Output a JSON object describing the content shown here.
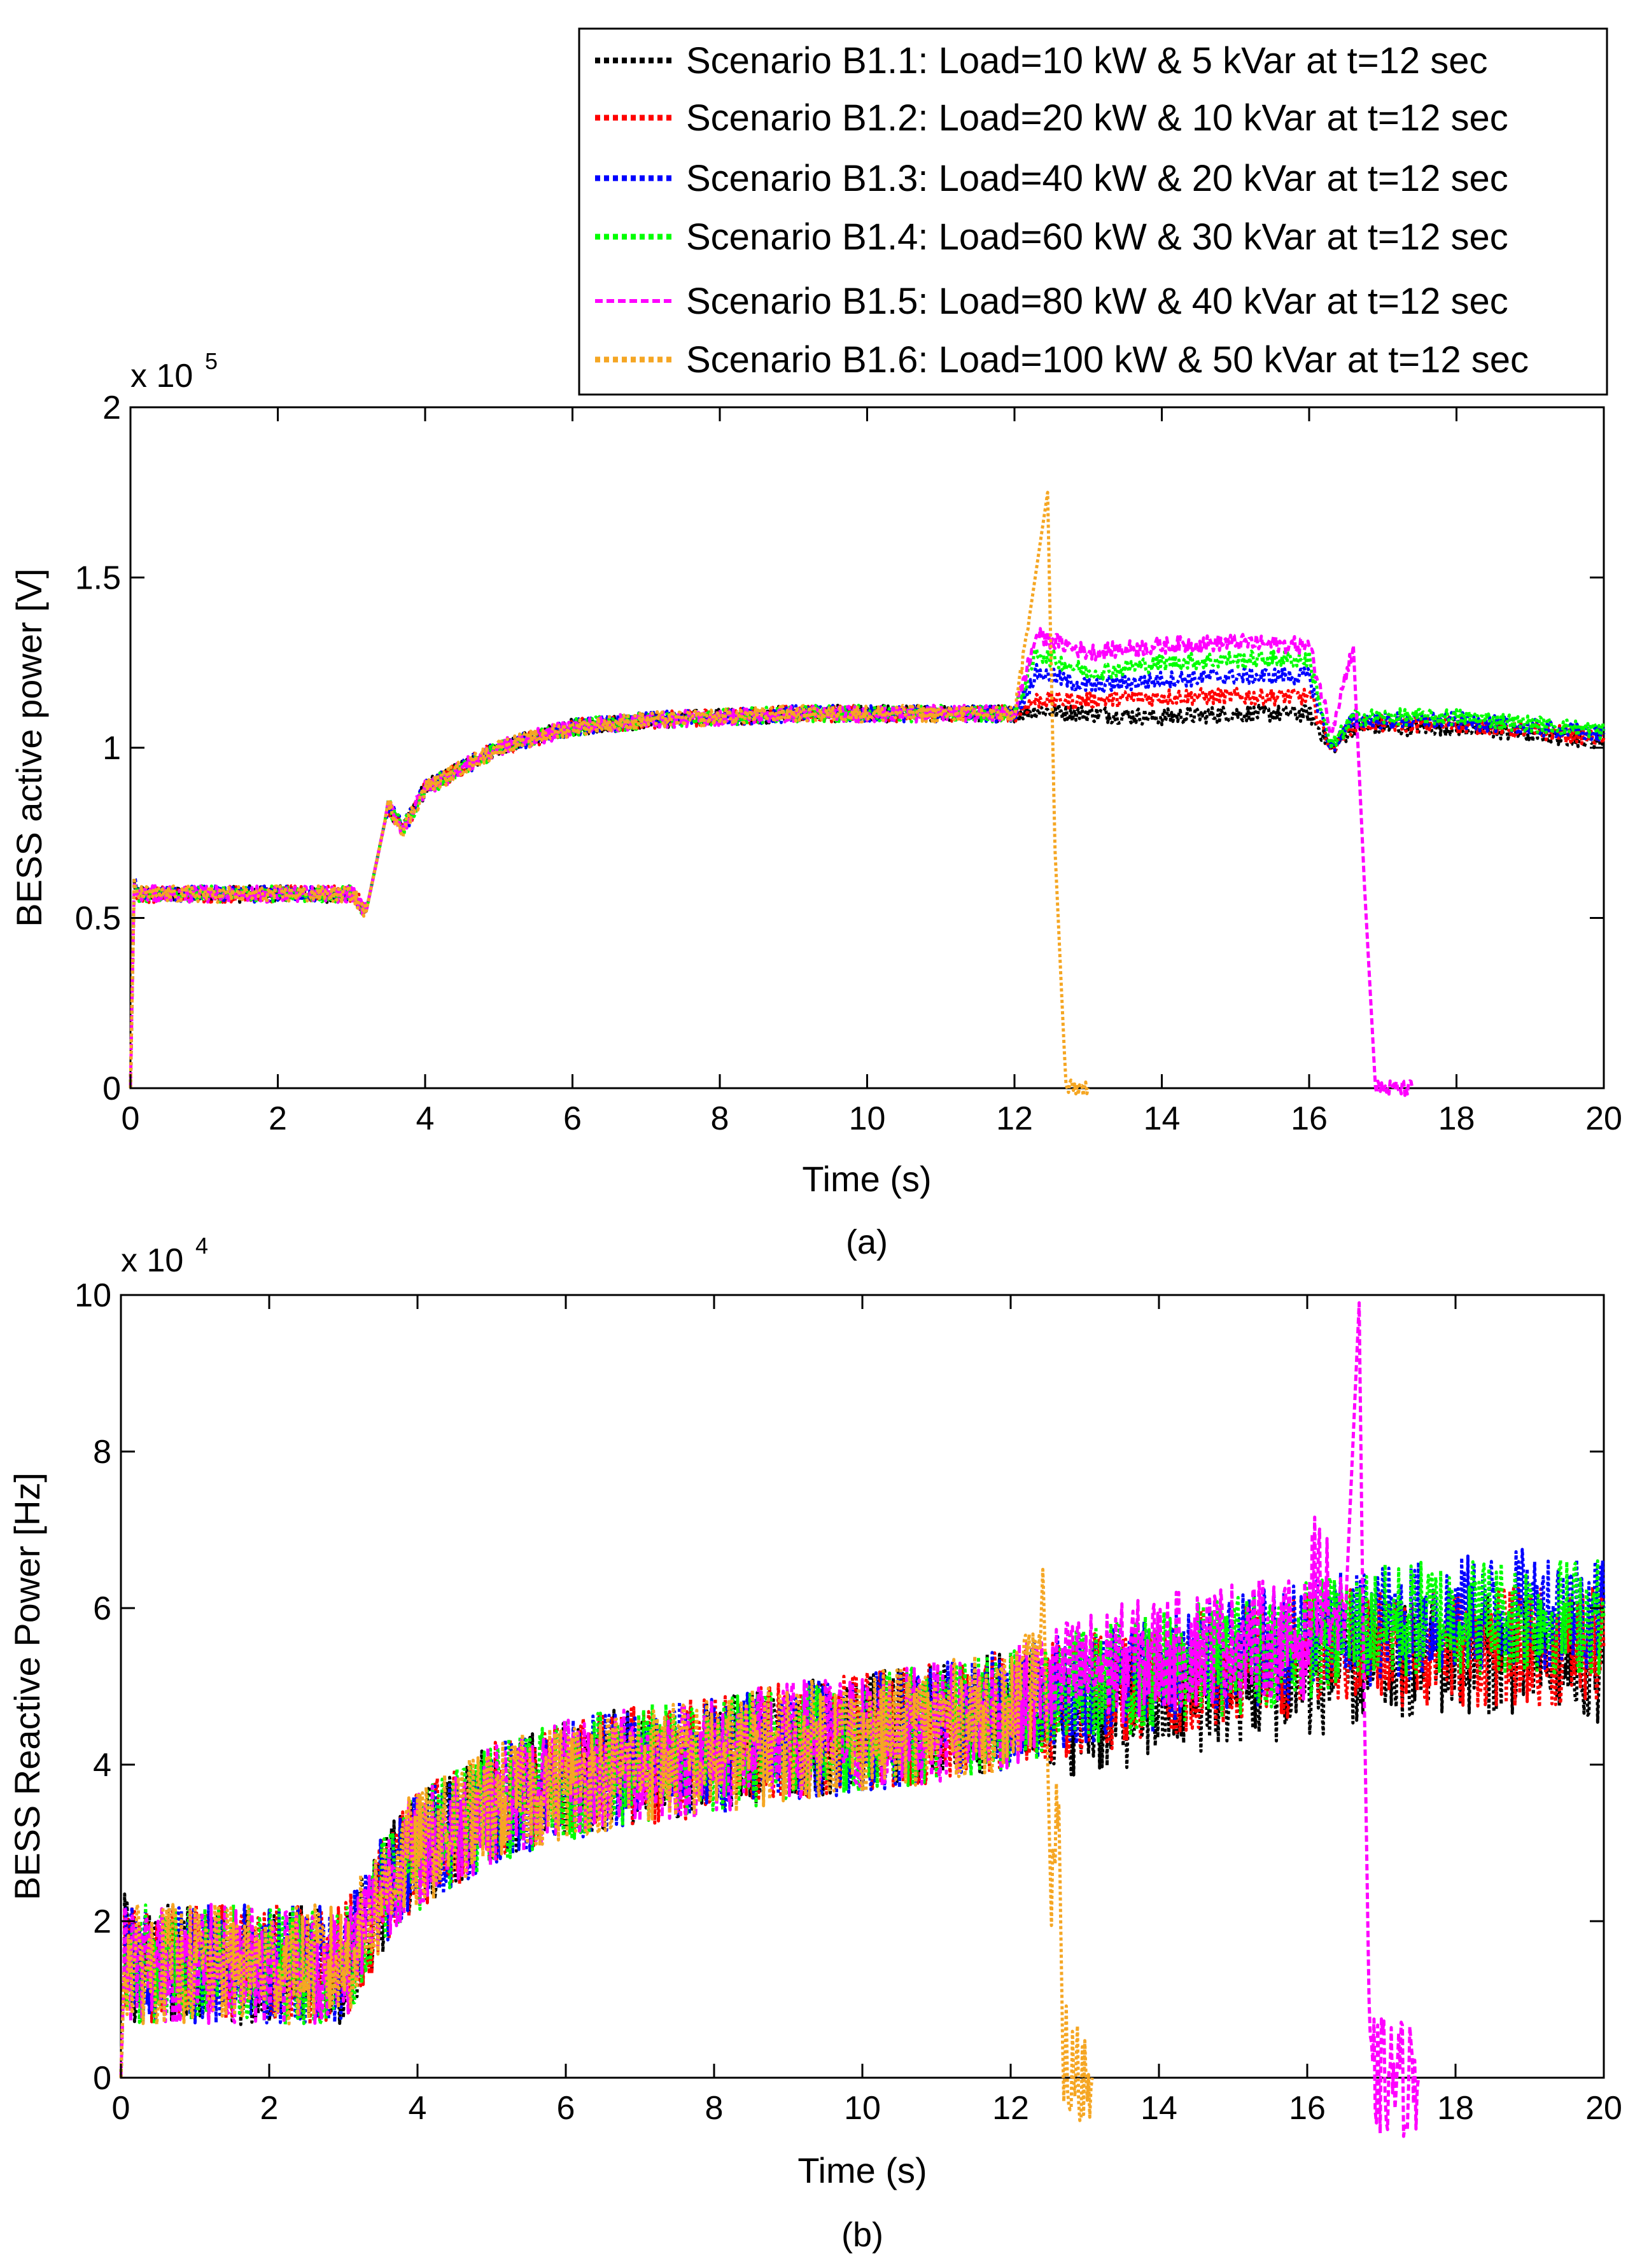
{
  "legend": {
    "entries": [
      {
        "label": "Scenario B1.1: Load=10 kW & 5 kVar at t=12 sec",
        "color": "#000000"
      },
      {
        "label": "Scenario B1.2: Load=20 kW & 10 kVar at t=12 sec",
        "color": "#ff0000"
      },
      {
        "label": "Scenario B1.3: Load=40 kW & 20 kVar at t=12 sec",
        "color": "#0000ff"
      },
      {
        "label": "Scenario B1.4: Load=60 kW & 30 kVar at t=12 sec",
        "color": "#00ff00"
      },
      {
        "label": "Scenario B1.5: Load=80 kW & 40 kVar at t=12 sec",
        "color": "#ff00ff"
      },
      {
        "label": "Scenario B1.6: Load=100 kW & 50 kVar at t=12 sec",
        "color": "#f5a623"
      }
    ]
  },
  "chart_data": [
    {
      "type": "line",
      "caption": "(a)",
      "xlabel": "Time (s)",
      "ylabel": "BESS active power [V]",
      "exponent_label": "x 10",
      "exponent_power": "5",
      "xlim": [
        0,
        20
      ],
      "ylim": [
        0,
        2
      ],
      "xticks": [
        0,
        2,
        4,
        6,
        8,
        10,
        12,
        14,
        16,
        18,
        20
      ],
      "xtick_labels": [
        "0",
        "2",
        "4",
        "6",
        "8",
        "10",
        "12",
        "14",
        "16",
        "18",
        "20"
      ],
      "yticks": [
        0,
        0.5,
        1,
        1.5,
        2
      ],
      "ytick_labels": [
        "0",
        "0.5",
        "1",
        "1.5",
        "2"
      ],
      "series": [
        {
          "name": "Scenario B1.1",
          "x": [
            0,
            0.05,
            0.1,
            3,
            3.2,
            3.5,
            3.7,
            4,
            5,
            6,
            7,
            8,
            9,
            10,
            11,
            12,
            12.3,
            13,
            14,
            15,
            16,
            16.3,
            16.6,
            17,
            18,
            19,
            20
          ],
          "y": [
            0,
            0.6,
            0.57,
            0.57,
            0.52,
            0.83,
            0.76,
            0.88,
            1.0,
            1.06,
            1.08,
            1.09,
            1.1,
            1.1,
            1.1,
            1.1,
            1.11,
            1.1,
            1.09,
            1.1,
            1.1,
            1.0,
            1.06,
            1.06,
            1.06,
            1.04,
            1.02
          ]
        },
        {
          "name": "Scenario B1.2",
          "x": [
            0,
            0.05,
            0.1,
            3,
            3.2,
            3.5,
            3.7,
            4,
            5,
            6,
            7,
            8,
            9,
            10,
            11,
            12,
            12.3,
            13,
            14,
            15,
            16,
            16.3,
            16.6,
            17,
            18,
            19,
            20
          ],
          "y": [
            0,
            0.6,
            0.57,
            0.57,
            0.52,
            0.83,
            0.76,
            0.88,
            1.0,
            1.06,
            1.08,
            1.09,
            1.1,
            1.1,
            1.1,
            1.1,
            1.14,
            1.14,
            1.15,
            1.15,
            1.15,
            1.0,
            1.07,
            1.07,
            1.07,
            1.05,
            1.03
          ]
        },
        {
          "name": "Scenario B1.3",
          "x": [
            0,
            0.05,
            0.1,
            3,
            3.2,
            3.5,
            3.7,
            4,
            5,
            6,
            7,
            8,
            9,
            10,
            11,
            12,
            12.3,
            13,
            14,
            15,
            16,
            16.3,
            16.6,
            17,
            18,
            19,
            20
          ],
          "y": [
            0,
            0.6,
            0.57,
            0.57,
            0.52,
            0.83,
            0.76,
            0.88,
            1.0,
            1.06,
            1.08,
            1.09,
            1.1,
            1.1,
            1.1,
            1.1,
            1.22,
            1.18,
            1.2,
            1.21,
            1.21,
            1.0,
            1.08,
            1.08,
            1.08,
            1.06,
            1.04
          ]
        },
        {
          "name": "Scenario B1.4",
          "x": [
            0,
            0.05,
            0.1,
            3,
            3.2,
            3.5,
            3.7,
            4,
            5,
            6,
            7,
            8,
            9,
            10,
            11,
            12,
            12.3,
            13,
            14,
            15,
            16,
            16.3,
            16.6,
            17,
            18,
            19,
            20
          ],
          "y": [
            0,
            0.6,
            0.57,
            0.57,
            0.52,
            0.83,
            0.76,
            0.88,
            1.0,
            1.06,
            1.08,
            1.09,
            1.1,
            1.1,
            1.1,
            1.1,
            1.28,
            1.22,
            1.25,
            1.26,
            1.26,
            1.0,
            1.09,
            1.09,
            1.09,
            1.07,
            1.05
          ]
        },
        {
          "name": "Scenario B1.5",
          "x": [
            0,
            0.05,
            0.1,
            3,
            3.2,
            3.5,
            3.7,
            4,
            5,
            6,
            7,
            8,
            9,
            10,
            11,
            12,
            12.3,
            13,
            14,
            15,
            16,
            16.3,
            16.6,
            16.75,
            16.9,
            17.4
          ],
          "y": [
            0,
            0.6,
            0.57,
            0.57,
            0.52,
            0.83,
            0.76,
            0.88,
            1.0,
            1.06,
            1.08,
            1.09,
            1.1,
            1.1,
            1.1,
            1.1,
            1.33,
            1.28,
            1.3,
            1.31,
            1.3,
            1.05,
            1.3,
            0.6,
            0.0,
            0.0
          ]
        },
        {
          "name": "Scenario B1.6",
          "x": [
            0,
            0.05,
            0.1,
            3,
            3.2,
            3.5,
            3.7,
            4,
            5,
            6,
            7,
            8,
            9,
            10,
            11,
            12,
            12.2,
            12.45,
            12.55,
            12.7,
            13.0
          ],
          "y": [
            0,
            0.6,
            0.57,
            0.57,
            0.52,
            0.83,
            0.76,
            0.88,
            1.0,
            1.06,
            1.08,
            1.09,
            1.1,
            1.1,
            1.1,
            1.1,
            1.38,
            1.75,
            0.7,
            0.0,
            0.0
          ]
        }
      ]
    },
    {
      "type": "line",
      "caption": "(b)",
      "xlabel": "Time (s)",
      "ylabel": "BESS Reactive Power [Hz]",
      "exponent_label": "x 10",
      "exponent_power": "4",
      "xlim": [
        0,
        20
      ],
      "ylim": [
        0,
        10
      ],
      "xticks": [
        0,
        2,
        4,
        6,
        8,
        10,
        12,
        14,
        16,
        18,
        20
      ],
      "xtick_labels": [
        "0",
        "2",
        "4",
        "6",
        "8",
        "10",
        "12",
        "14",
        "16",
        "18",
        "20"
      ],
      "yticks": [
        0,
        2,
        4,
        6,
        8,
        10
      ],
      "ytick_labels": [
        "0",
        "2",
        "4",
        "6",
        "8",
        "10"
      ],
      "series": [
        {
          "name": "Scenario B1.1",
          "x": [
            0,
            0.05,
            0.1,
            3,
            3.1,
            3.5,
            3.7,
            4,
            5,
            6,
            7,
            8,
            9,
            10,
            11,
            12,
            12.5,
            13,
            14,
            15,
            16,
            16.5,
            17,
            18,
            19,
            20
          ],
          "y": [
            0,
            1.6,
            1.45,
            1.45,
            1.6,
            2.3,
            2.7,
            2.9,
            3.5,
            3.8,
            4.0,
            4.1,
            4.3,
            4.4,
            4.55,
            4.7,
            4.7,
            4.6,
            4.8,
            5.0,
            5.1,
            5.2,
            5.3,
            5.4,
            5.4,
            5.3
          ]
        },
        {
          "name": "Scenario B1.2",
          "x": [
            0,
            0.05,
            0.1,
            3,
            3.1,
            3.5,
            3.7,
            4,
            5,
            6,
            7,
            8,
            9,
            10,
            11,
            12,
            12.5,
            13,
            14,
            15,
            16,
            16.5,
            17,
            18,
            19,
            20
          ],
          "y": [
            0,
            1.6,
            1.45,
            1.45,
            1.6,
            2.3,
            2.7,
            2.9,
            3.5,
            3.8,
            4.0,
            4.1,
            4.3,
            4.4,
            4.55,
            4.7,
            4.8,
            4.9,
            5.1,
            5.3,
            5.4,
            5.5,
            5.5,
            5.5,
            5.5,
            5.5
          ]
        },
        {
          "name": "Scenario B1.3",
          "x": [
            0,
            0.05,
            0.1,
            3,
            3.1,
            3.5,
            3.7,
            4,
            5,
            6,
            7,
            8,
            9,
            10,
            11,
            12,
            12.5,
            13,
            14,
            15,
            16,
            16.5,
            17,
            18,
            19,
            20
          ],
          "y": [
            0,
            1.6,
            1.45,
            1.45,
            1.6,
            2.3,
            2.7,
            2.9,
            3.5,
            3.8,
            4.0,
            4.1,
            4.3,
            4.4,
            4.55,
            4.7,
            4.9,
            5.0,
            5.2,
            5.4,
            5.6,
            5.7,
            5.8,
            5.9,
            6.0,
            6.0
          ]
        },
        {
          "name": "Scenario B1.4",
          "x": [
            0,
            0.05,
            0.1,
            3,
            3.1,
            3.5,
            3.7,
            4,
            5,
            6,
            7,
            8,
            9,
            10,
            11,
            12,
            12.5,
            13,
            14,
            15,
            16,
            16.5,
            17,
            18,
            19,
            20
          ],
          "y": [
            0,
            1.6,
            1.45,
            1.45,
            1.6,
            2.3,
            2.7,
            2.9,
            3.5,
            3.8,
            4.0,
            4.1,
            4.3,
            4.4,
            4.55,
            4.7,
            4.9,
            5.0,
            5.2,
            5.4,
            5.6,
            5.7,
            5.8,
            5.9,
            5.9,
            5.9
          ]
        },
        {
          "name": "Scenario B1.5",
          "x": [
            0,
            0.05,
            0.1,
            3,
            3.1,
            3.5,
            3.7,
            4,
            5,
            6,
            7,
            8,
            9,
            10,
            11,
            12,
            12.5,
            13,
            14,
            15,
            16,
            16.1,
            16.5,
            16.7,
            16.75,
            16.85,
            17.5
          ],
          "y": [
            0,
            1.6,
            1.45,
            1.45,
            1.6,
            2.3,
            2.7,
            2.9,
            3.5,
            3.8,
            4.0,
            4.1,
            4.3,
            4.4,
            4.55,
            4.7,
            5.0,
            5.2,
            5.4,
            5.6,
            5.6,
            6.5,
            5.6,
            9.9,
            6.0,
            0.0,
            0.0
          ]
        },
        {
          "name": "Scenario B1.6",
          "x": [
            0,
            0.05,
            0.1,
            3,
            3.1,
            3.5,
            3.7,
            4,
            5,
            6,
            7,
            8,
            9,
            10,
            11,
            12,
            12.3,
            12.45,
            12.55,
            12.65,
            12.7,
            12.8,
            13.1
          ],
          "y": [
            0,
            1.6,
            1.45,
            1.45,
            1.6,
            2.3,
            2.7,
            2.9,
            3.5,
            3.8,
            4.0,
            4.1,
            4.3,
            4.4,
            4.55,
            4.7,
            5.0,
            6.0,
            2.0,
            3.5,
            0.5,
            0.0,
            0.0
          ]
        }
      ]
    }
  ]
}
